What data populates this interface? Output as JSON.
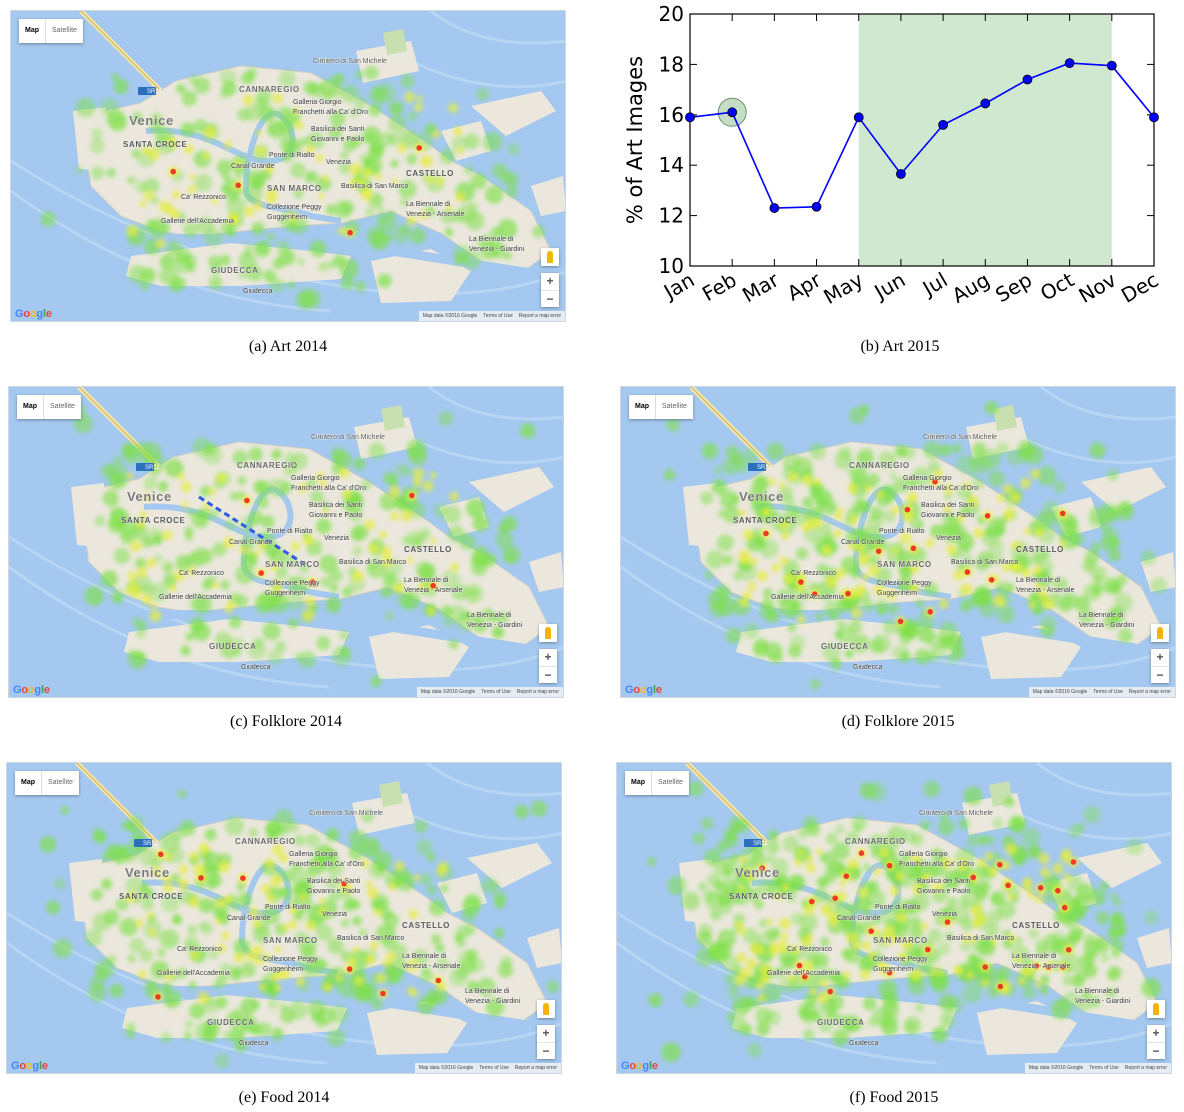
{
  "map_ui": {
    "type_map": "Map",
    "type_satellite": "Satellite",
    "zoom_in": "+",
    "zoom_out": "−",
    "logo": "Google",
    "map_data": "Map data ©2016 Google",
    "terms": "Terms of Use",
    "report": "Report a map error"
  },
  "place_labels": [
    {
      "text": "Cimitero di San Michele"
    },
    {
      "text": "CANNAREGIO"
    },
    {
      "text": "Galleria Giorgio"
    },
    {
      "text": "Franchetti alla Ca' d'Oro"
    },
    {
      "text": "Venice"
    },
    {
      "text": "SR11"
    },
    {
      "text": "Basilica dei Santi"
    },
    {
      "text": "Giovanni e Paolo"
    },
    {
      "text": "SANTA CROCE"
    },
    {
      "text": "Ponte di Rialto"
    },
    {
      "text": "Venezia"
    },
    {
      "text": "Canal Grande"
    },
    {
      "text": "CASTELLO"
    },
    {
      "text": "SAN MARCO"
    },
    {
      "text": "Basilica di San Marco"
    },
    {
      "text": "Ca' Rezzonico"
    },
    {
      "text": "Collezione Peggy"
    },
    {
      "text": "Guggenheim"
    },
    {
      "text": "La Biennale di"
    },
    {
      "text": "Venezia - Arsenale"
    },
    {
      "text": "Gallerie dell'Accademia"
    },
    {
      "text": "La Biennale di"
    },
    {
      "text": "Venezia - Giardini"
    },
    {
      "text": "GIUDECCA"
    },
    {
      "text": "Giudecca"
    }
  ],
  "panels": [
    {
      "id": "a",
      "caption": "(a)  Art 2014",
      "kind": "map",
      "density": 0.9,
      "hotspots": 4,
      "route": false
    },
    {
      "id": "b",
      "caption": "(b)  Art 2015",
      "kind": "chart"
    },
    {
      "id": "c",
      "caption": "(c)  Folklore 2014",
      "kind": "map",
      "density": 0.9,
      "hotspots": 5,
      "route": true
    },
    {
      "id": "d",
      "caption": "(d)  Folklore 2015",
      "kind": "map",
      "density": 1.3,
      "hotspots": 14,
      "route": false
    },
    {
      "id": "e",
      "caption": "(e)  Food 2014",
      "kind": "map",
      "density": 1.1,
      "hotspots": 8,
      "route": false
    },
    {
      "id": "f",
      "caption": "(f)  Food 2015",
      "kind": "map",
      "density": 1.6,
      "hotspots": 26,
      "route": false
    }
  ],
  "colors": {
    "water": "#a4c8ef",
    "land": "#ebe7dd",
    "park": "#c8e0b0",
    "heat_low": "#7ee048",
    "heat_mid": "#e6ee3a",
    "heat_high": "#ee3a2a",
    "chart_line": "#0000ff",
    "chart_band": "#cfe8cf",
    "route": "#2f5be0"
  },
  "chart_data": {
    "type": "line",
    "categories": [
      "Jan",
      "Feb",
      "Mar",
      "Apr",
      "May",
      "Jun",
      "Jul",
      "Aug",
      "Sep",
      "Oct",
      "Nov",
      "Dec"
    ],
    "values": [
      15.9,
      16.1,
      12.3,
      12.35,
      15.9,
      13.65,
      15.6,
      16.45,
      17.4,
      18.05,
      17.95,
      15.9
    ],
    "ylabel": "% of Art Images",
    "xlabel": "",
    "ylim": [
      10,
      20
    ],
    "yticks": [
      10,
      12,
      14,
      16,
      18,
      20
    ],
    "highlight_band": {
      "from": "May",
      "to": "Nov"
    },
    "highlight_point": "Feb",
    "grid": false
  }
}
